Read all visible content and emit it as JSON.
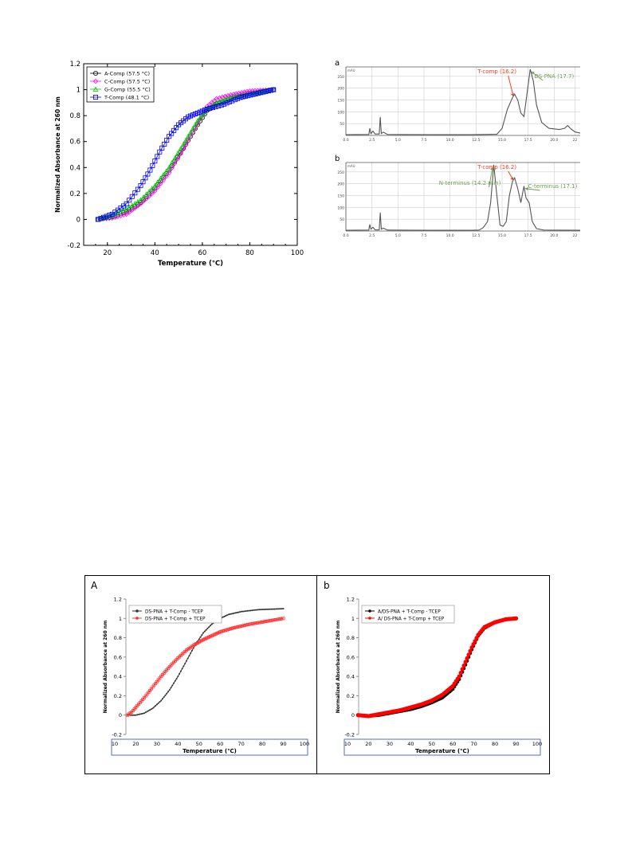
{
  "chart_data": [
    {
      "id": "melt",
      "type": "line",
      "xlabel": "Temperature (℃)",
      "ylabel": "Normalized Absorbance at 260 nm",
      "xlim": [
        10,
        100
      ],
      "ylim": [
        -0.2,
        1.2
      ],
      "xticks": [
        "20",
        "40",
        "60",
        "80",
        "100"
      ],
      "yticks": [
        "-0.2",
        "0",
        "0.2",
        "0.4",
        "0.6",
        "0.8",
        "1",
        "1.2"
      ],
      "grid": false,
      "legend_position": "top-left",
      "series": [
        {
          "name": "A-Comp (57.5 °C)",
          "color": "#000000",
          "marker": "circle",
          "x": [
            16,
            22,
            28,
            34,
            40,
            46,
            52,
            56,
            58,
            62,
            66,
            72,
            80,
            90
          ],
          "y": [
            0,
            0.02,
            0.06,
            0.13,
            0.24,
            0.38,
            0.55,
            0.67,
            0.73,
            0.84,
            0.89,
            0.93,
            0.97,
            1.0
          ]
        },
        {
          "name": "C-Comp (57.5 °C)",
          "color": "#ff00ff",
          "marker": "diamond",
          "x": [
            16,
            22,
            28,
            34,
            40,
            46,
            52,
            56,
            58,
            62,
            66,
            72,
            80,
            90
          ],
          "y": [
            0,
            0.01,
            0.04,
            0.12,
            0.22,
            0.36,
            0.54,
            0.67,
            0.74,
            0.87,
            0.93,
            0.96,
            0.99,
            1.0
          ]
        },
        {
          "name": "G-Comp (55.5 °C)",
          "color": "#00cc00",
          "marker": "triangle",
          "x": [
            16,
            22,
            28,
            34,
            40,
            46,
            52,
            56,
            58,
            62,
            66,
            72,
            80,
            90
          ],
          "y": [
            0,
            0.03,
            0.08,
            0.15,
            0.26,
            0.4,
            0.58,
            0.7,
            0.76,
            0.85,
            0.9,
            0.94,
            0.97,
            1.0
          ]
        },
        {
          "name": "T-Comp (48.1 °C)",
          "color": "#0000ff",
          "marker": "square",
          "x": [
            16,
            22,
            28,
            34,
            38,
            42,
            46,
            50,
            54,
            58,
            62,
            68,
            76,
            90
          ],
          "y": [
            0,
            0.04,
            0.12,
            0.26,
            0.38,
            0.52,
            0.64,
            0.73,
            0.79,
            0.82,
            0.85,
            0.88,
            0.94,
            1.0
          ]
        }
      ]
    },
    {
      "id": "hplc",
      "type": "line",
      "panels": [
        {
          "label": "a",
          "unit": "mAU",
          "xlim": [
            0,
            22.5
          ],
          "ylim": [
            0,
            290
          ],
          "xticks": [
            "0.0",
            "2.5",
            "5.0",
            "7.5",
            "10.0",
            "12.5",
            "15.0",
            "17.5",
            "20.0",
            "22"
          ],
          "yticks": [
            "50",
            "100",
            "150",
            "200",
            "250"
          ],
          "color": "#555555",
          "x": [
            0,
            2.2,
            2.3,
            2.4,
            2.6,
            2.8,
            3.2,
            3.3,
            3.4,
            3.6,
            4.0,
            8,
            12,
            14.5,
            15.0,
            15.5,
            16.0,
            16.2,
            16.5,
            16.8,
            17.1,
            17.4,
            17.7,
            18.0,
            18.3,
            18.8,
            19.5,
            20.5,
            21.0,
            21.3,
            21.6,
            22.0,
            22.5
          ],
          "y": [
            3,
            4,
            30,
            8,
            18,
            6,
            6,
            78,
            8,
            14,
            4,
            3,
            3,
            5,
            30,
            110,
            160,
            175,
            150,
            95,
            80,
            180,
            280,
            230,
            130,
            55,
            30,
            25,
            30,
            42,
            28,
            15,
            10
          ],
          "annotations": [
            {
              "text": "T-comp (16.2)",
              "x_data": 16.2,
              "color": "#ff3b1f"
            },
            {
              "text": "DS-PNA (17.7)",
              "x_data": 17.7,
              "color": "#6f9f4f"
            }
          ]
        },
        {
          "label": "b",
          "unit": "mAU",
          "xlim": [
            0,
            22.5
          ],
          "ylim": [
            0,
            290
          ],
          "xticks": [
            "0.0",
            "2.5",
            "5.0",
            "7.5",
            "10.0",
            "12.5",
            "15.0",
            "17.5",
            "20.0",
            "22"
          ],
          "yticks": [
            "50",
            "100",
            "150",
            "200",
            "250"
          ],
          "color": "#555555",
          "x": [
            0,
            2.2,
            2.3,
            2.4,
            2.6,
            2.8,
            3.2,
            3.3,
            3.4,
            3.6,
            4.0,
            8,
            12,
            12.8,
            13.2,
            13.6,
            13.9,
            14.2,
            14.5,
            14.8,
            15.1,
            15.4,
            15.7,
            16.0,
            16.2,
            16.5,
            16.8,
            17.1,
            17.3,
            17.6,
            17.9,
            18.3,
            19,
            22.5
          ],
          "y": [
            3,
            4,
            28,
            8,
            16,
            5,
            5,
            78,
            8,
            12,
            4,
            3,
            3,
            4,
            15,
            40,
            120,
            280,
            150,
            25,
            20,
            40,
            150,
            210,
            225,
            180,
            120,
            190,
            140,
            120,
            40,
            10,
            4,
            3
          ],
          "annotations": [
            {
              "text": "N-terminus (14.2 min)",
              "x_data": 14.2,
              "color": "#6f9f4f"
            },
            {
              "text": "T-comp (16.2)",
              "x_data": 16.2,
              "color": "#ff3b1f"
            },
            {
              "text": "C-terminus (17.1)",
              "x_data": 17.1,
              "color": "#6f9f4f"
            }
          ]
        }
      ]
    },
    {
      "id": "tcep",
      "type": "line",
      "panels": [
        {
          "label": "A",
          "xlabel": "Temperature (℃)",
          "ylabel": "Normalized Absorbance at 260 nm",
          "xlim": [
            10,
            100
          ],
          "ylim": [
            -0.2,
            1.2
          ],
          "xticks": [
            "10",
            "20",
            "30",
            "40",
            "50",
            "60",
            "70",
            "80",
            "90",
            "100"
          ],
          "yticks": [
            "-0.2",
            "0",
            "0.2",
            "0.4",
            "0.6",
            "0.8",
            "1",
            "1.2"
          ],
          "legend_position": "top-left",
          "series": [
            {
              "name": "DS-PNA + T-Comp - TCEP",
              "color": "#333333",
              "x": [
                16,
                20,
                24,
                28,
                32,
                36,
                40,
                44,
                48,
                52,
                56,
                60,
                64,
                70,
                78,
                90
              ],
              "y": [
                0,
                0.0,
                0.02,
                0.07,
                0.15,
                0.26,
                0.4,
                0.56,
                0.72,
                0.85,
                0.94,
                1.0,
                1.04,
                1.07,
                1.09,
                1.1
              ]
            },
            {
              "name": "DS-PNA + T-Comp + TCEP",
              "color": "#ff3030",
              "x": [
                16,
                18,
                20,
                24,
                28,
                32,
                36,
                40,
                44,
                48,
                52,
                56,
                60,
                66,
                74,
                82,
                90
              ],
              "y": [
                0,
                0.03,
                0.08,
                0.18,
                0.29,
                0.4,
                0.5,
                0.59,
                0.67,
                0.73,
                0.78,
                0.82,
                0.86,
                0.9,
                0.94,
                0.97,
                1.0
              ]
            }
          ]
        },
        {
          "label": "b",
          "xlabel": "Temperature (℃)",
          "ylabel": "Normalized Absorbance at 260 nm",
          "xlim": [
            10,
            100
          ],
          "ylim": [
            -0.2,
            1.2
          ],
          "xticks": [
            "10",
            "20",
            "30",
            "40",
            "50",
            "60",
            "70",
            "80",
            "90",
            "100"
          ],
          "yticks": [
            "-0.2",
            "0",
            "0.2",
            "0.4",
            "0.6",
            "0.8",
            "1",
            "1.2"
          ],
          "legend_position": "top-left",
          "series": [
            {
              "name": "A/DS-PNA + T-Comp - TCEP",
              "color": "#000000",
              "x": [
                15,
                20,
                25,
                30,
                35,
                40,
                45,
                50,
                55,
                60,
                63,
                66,
                69,
                72,
                75,
                80,
                85,
                90
              ],
              "y": [
                0.0,
                -0.01,
                0.0,
                0.02,
                0.04,
                0.06,
                0.09,
                0.13,
                0.18,
                0.27,
                0.37,
                0.52,
                0.68,
                0.82,
                0.9,
                0.96,
                0.99,
                1.0
              ]
            },
            {
              "name": "A/ DS-PNA + T-Comp + TCEP",
              "color": "#ff0000",
              "x": [
                15,
                20,
                25,
                30,
                35,
                40,
                45,
                50,
                55,
                60,
                63,
                66,
                69,
                72,
                75,
                80,
                85,
                90
              ],
              "y": [
                0.0,
                -0.01,
                0.01,
                0.03,
                0.05,
                0.08,
                0.11,
                0.15,
                0.21,
                0.3,
                0.4,
                0.55,
                0.7,
                0.83,
                0.91,
                0.96,
                0.99,
                1.0
              ]
            }
          ]
        }
      ]
    }
  ]
}
